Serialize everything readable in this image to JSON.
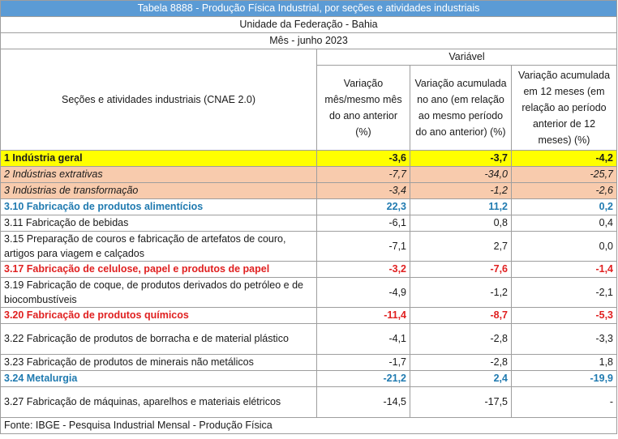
{
  "title": "Tabela 8888 - Produção Física Industrial, por seções e atividades industriais",
  "uf_label": "Unidade da Federação - Bahia",
  "mes_label": "Mês - junho 2023",
  "variavel_label": "Variável",
  "col_secoes": "Seções e atividades industriais (CNAE 2.0)",
  "col1": "Variação mês/mesmo mês do ano anterior (%)",
  "col2": "Variação acumulada no ano (em relação ao mesmo período do ano anterior) (%)",
  "col3": "Variação acumulada em 12 meses (em relação ao período anterior de 12 meses) (%)",
  "rows": [
    {
      "name": "1 Indústria geral",
      "v1": "-3,6",
      "v2": "-3,7",
      "v3": "-4,2"
    },
    {
      "name": "2 Indústrias extrativas",
      "v1": "-7,7",
      "v2": "-34,0",
      "v3": "-25,7"
    },
    {
      "name": "3 Indústrias de transformação",
      "v1": "-3,4",
      "v2": "-1,2",
      "v3": "-2,6"
    },
    {
      "name": "3.10 Fabricação de produtos alimentícios",
      "v1": "22,3",
      "v2": "11,2",
      "v3": "0,2"
    },
    {
      "name": "3.11 Fabricação de bebidas",
      "v1": "-6,1",
      "v2": "0,8",
      "v3": "0,4"
    },
    {
      "name": "3.15 Preparação de couros e fabricação de artefatos de couro, artigos para viagem e calçados",
      "v1": "-7,1",
      "v2": "2,7",
      "v3": "0,0"
    },
    {
      "name": "3.17 Fabricação de celulose, papel e produtos de papel",
      "v1": "-3,2",
      "v2": "-7,6",
      "v3": "-1,4"
    },
    {
      "name": "3.19 Fabricação de coque, de produtos derivados do petróleo e de biocombustíveis",
      "v1": "-4,9",
      "v2": "-1,2",
      "v3": "-2,1"
    },
    {
      "name": "3.20 Fabricação de produtos químicos",
      "v1": "-11,4",
      "v2": "-8,7",
      "v3": "-5,3"
    },
    {
      "name": "3.22 Fabricação de produtos de borracha e de material plástico",
      "v1": "-4,1",
      "v2": "-2,8",
      "v3": "-3,3"
    },
    {
      "name": "3.23 Fabricação de produtos de minerais não metálicos",
      "v1": "-1,7",
      "v2": "-2,8",
      "v3": "1,8"
    },
    {
      "name": "3.24 Metalurgia",
      "v1": "-21,2",
      "v2": "2,4",
      "v3": "-19,9"
    },
    {
      "name": "3.27 Fabricação de máquinas, aparelhos e materiais elétricos",
      "v1": "-14,5",
      "v2": "-17,5",
      "v3": "-"
    }
  ],
  "footer": "Fonte: IBGE - Pesquisa Industrial Mensal - Produção Física",
  "colors": {
    "title_bg": "#5b9bd5",
    "highlight_yellow": "#ffff00",
    "highlight_orange": "#f8cbad",
    "text_blue": "#1f7ab0",
    "text_red": "#e02020"
  }
}
